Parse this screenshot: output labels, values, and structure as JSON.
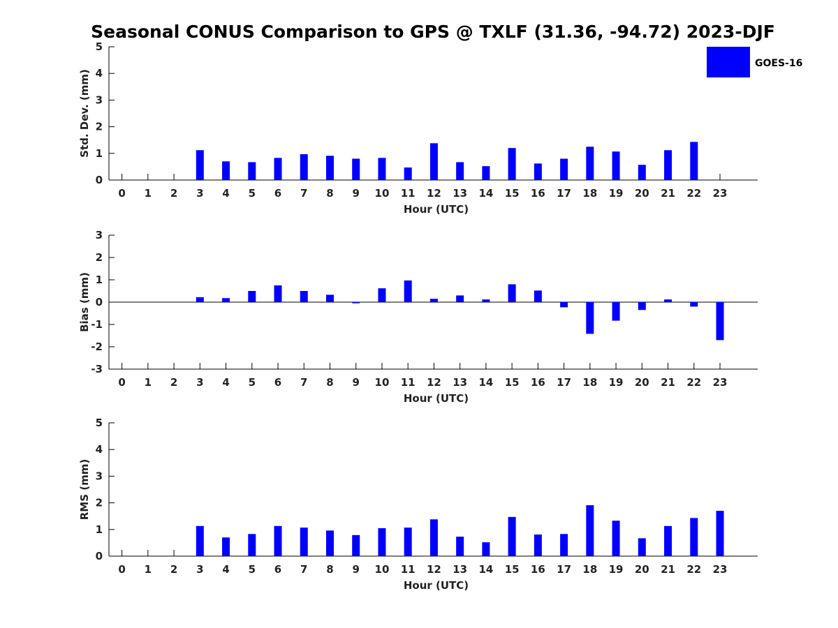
{
  "title": "Seasonal CONUS Comparison to GPS @ TXLF (31.36, -94.72) 2023-DJF",
  "legend": {
    "label": "GOES-16",
    "color": "#0000ff",
    "placement": "top-right"
  },
  "chart_data": [
    {
      "type": "bar",
      "name": "std-dev",
      "xlabel": "Hour (UTC)",
      "ylabel": "Std. Dev. (mm)",
      "ylim": [
        0,
        5
      ],
      "yticks": [
        0,
        1,
        2,
        3,
        4,
        5
      ],
      "categories": [
        "0",
        "1",
        "2",
        "3",
        "4",
        "5",
        "6",
        "7",
        "8",
        "9",
        "10",
        "11",
        "12",
        "13",
        "14",
        "15",
        "16",
        "17",
        "18",
        "19",
        "20",
        "21",
        "22",
        "23"
      ],
      "series": [
        {
          "name": "GOES-16",
          "color": "#0000ff",
          "values": [
            null,
            null,
            null,
            1.12,
            0.7,
            0.67,
            0.83,
            0.97,
            0.91,
            0.8,
            0.83,
            0.47,
            1.38,
            0.67,
            0.52,
            1.2,
            0.62,
            0.8,
            1.25,
            1.07,
            0.57,
            1.12,
            1.43,
            null
          ]
        }
      ],
      "grid": false,
      "baseline": false
    },
    {
      "type": "bar",
      "name": "bias",
      "xlabel": "Hour (UTC)",
      "ylabel": "Bias (mm)",
      "ylim": [
        -3,
        3
      ],
      "yticks": [
        -3,
        -2,
        -1,
        0,
        1,
        2,
        3
      ],
      "categories": [
        "0",
        "1",
        "2",
        "3",
        "4",
        "5",
        "6",
        "7",
        "8",
        "9",
        "10",
        "11",
        "12",
        "13",
        "14",
        "15",
        "16",
        "17",
        "18",
        "19",
        "20",
        "21",
        "22",
        "23"
      ],
      "series": [
        {
          "name": "GOES-16",
          "color": "#0000ff",
          "values": [
            null,
            null,
            null,
            0.22,
            0.18,
            0.5,
            0.75,
            0.5,
            0.33,
            -0.05,
            0.62,
            0.97,
            0.15,
            0.3,
            0.12,
            0.8,
            0.52,
            -0.23,
            -1.42,
            -0.83,
            -0.35,
            0.12,
            -0.2,
            -1.7
          ]
        }
      ],
      "grid": false,
      "baseline": true
    },
    {
      "type": "bar",
      "name": "rms",
      "xlabel": "Hour (UTC)",
      "ylabel": "RMS (mm)",
      "ylim": [
        0,
        5
      ],
      "yticks": [
        0,
        1,
        2,
        3,
        4,
        5
      ],
      "categories": [
        "0",
        "1",
        "2",
        "3",
        "4",
        "5",
        "6",
        "7",
        "8",
        "9",
        "10",
        "11",
        "12",
        "13",
        "14",
        "15",
        "16",
        "17",
        "18",
        "19",
        "20",
        "21",
        "22",
        "23"
      ],
      "series": [
        {
          "name": "GOES-16",
          "color": "#0000ff",
          "values": [
            null,
            null,
            null,
            1.13,
            0.7,
            0.83,
            1.13,
            1.07,
            0.96,
            0.79,
            1.05,
            1.07,
            1.38,
            0.73,
            0.52,
            1.47,
            0.81,
            0.83,
            1.91,
            1.33,
            0.67,
            1.13,
            1.43,
            1.7
          ]
        }
      ],
      "grid": false,
      "baseline": false
    }
  ]
}
